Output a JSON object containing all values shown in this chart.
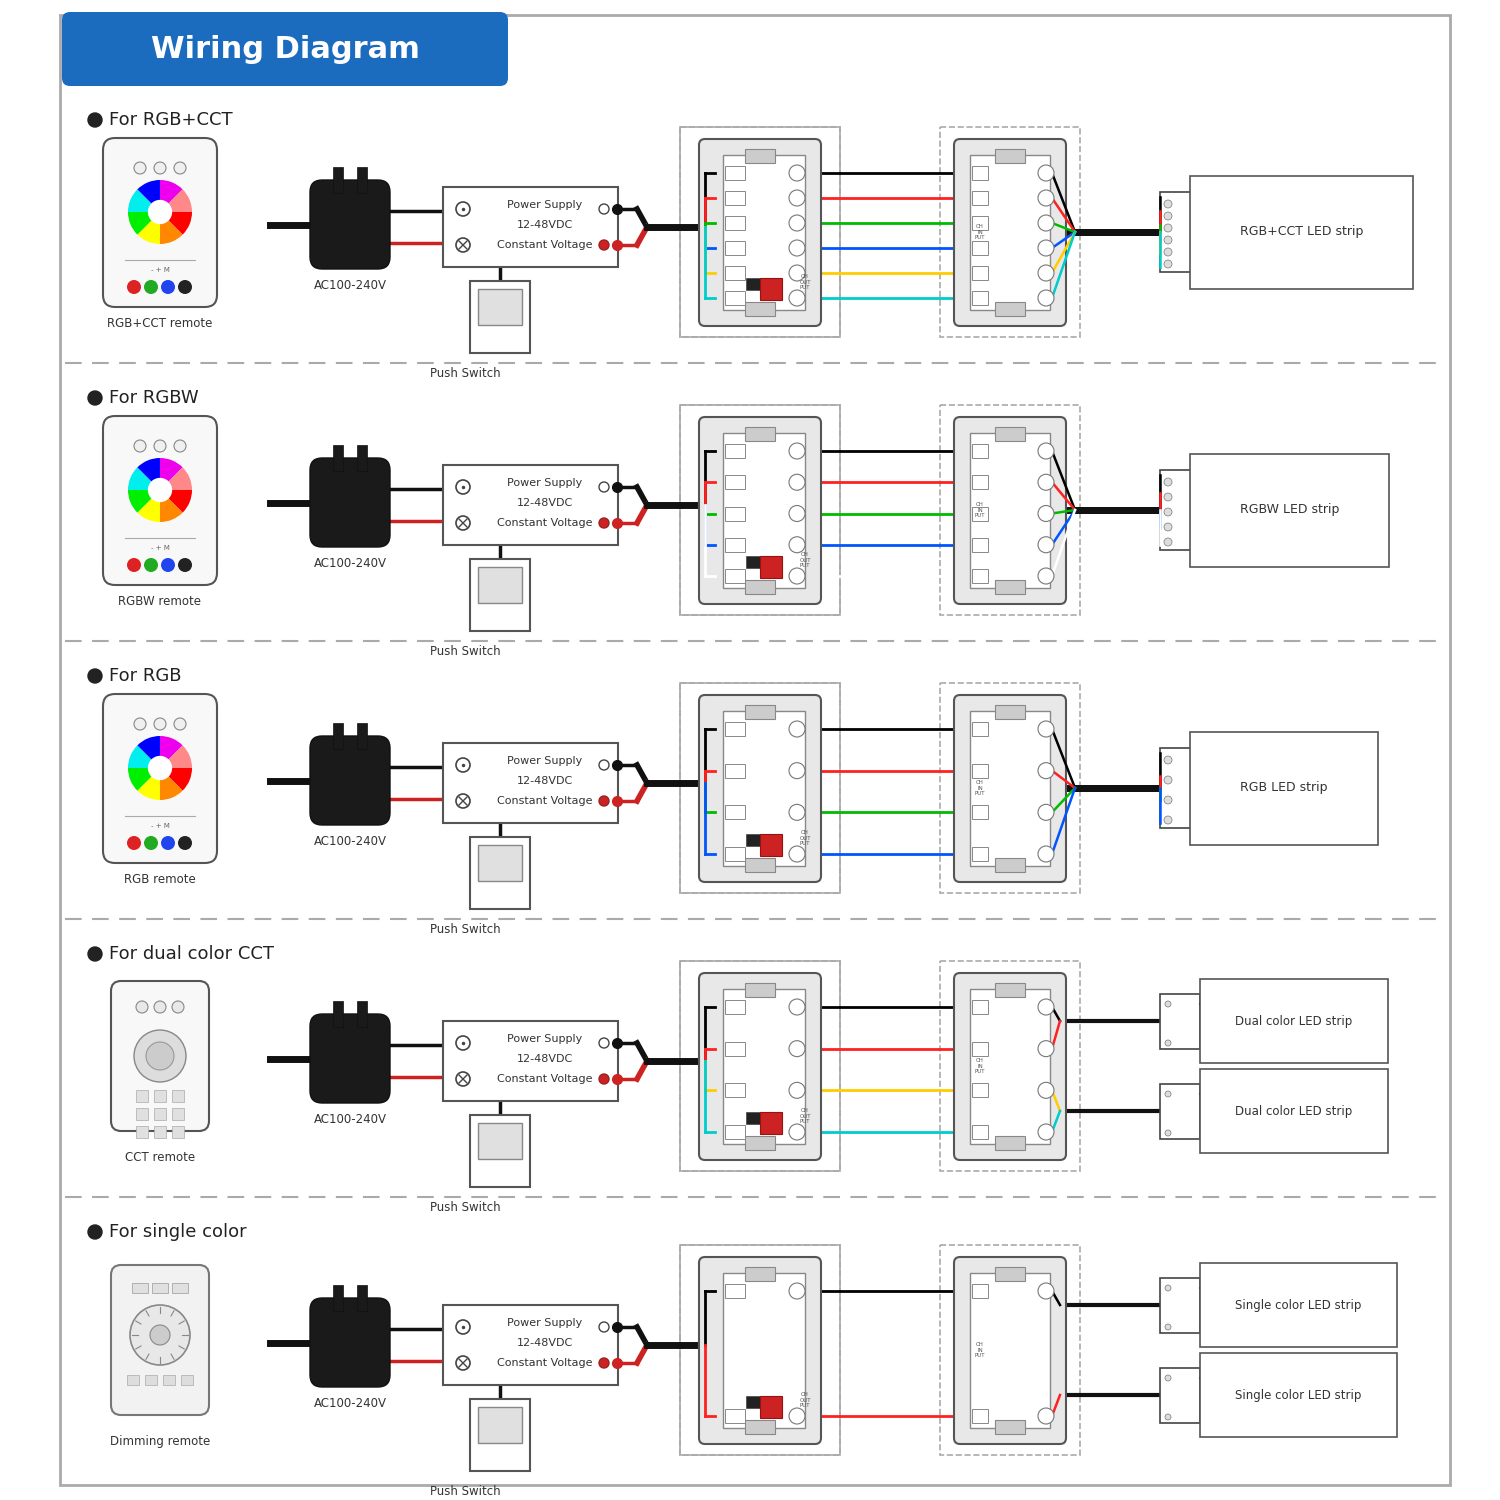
{
  "title": "Wiring Diagram",
  "title_bg": "#1b6bbf",
  "title_color": "#ffffff",
  "bg_color": "#ffffff",
  "sections": [
    {
      "label": "For RGB+CCT",
      "remote_label": "RGB+CCT remote",
      "remote_type": "rgb",
      "strip_label": "RGB+CCT LED strip",
      "strip_type": "single",
      "wire_colors": [
        "#000000",
        "#ff2020",
        "#00bb00",
        "#0055ff",
        "#ffcc00",
        "#00cccc"
      ]
    },
    {
      "label": "For RGBW",
      "remote_label": "RGBW remote",
      "remote_type": "rgb",
      "strip_label": "RGBW LED strip",
      "strip_type": "single",
      "wire_colors": [
        "#000000",
        "#ff2020",
        "#00bb00",
        "#0055ff",
        "#ffffff"
      ]
    },
    {
      "label": "For RGB",
      "remote_label": "RGB remote",
      "remote_type": "rgb",
      "strip_label": "RGB LED strip",
      "strip_type": "single",
      "wire_colors": [
        "#000000",
        "#ff2020",
        "#00bb00",
        "#0055ff"
      ]
    },
    {
      "label": "For dual color CCT",
      "remote_label": "CCT remote",
      "remote_type": "cct",
      "strip_label1": "Dual color LED strip",
      "strip_label2": "Dual color LED strip",
      "strip_type": "dual",
      "wire_colors": [
        "#000000",
        "#ff2020",
        "#ffcc00",
        "#00cccc"
      ]
    },
    {
      "label": "For single color",
      "remote_label": "Dimming remote",
      "remote_type": "dimming",
      "strip_label1": "Single color LED strip",
      "strip_label2": "Single color LED strip",
      "strip_type": "dual",
      "wire_colors": [
        "#000000",
        "#ff2020"
      ]
    }
  ],
  "ps_lines": [
    "Power Supply",
    "12-48VDC",
    "Constant Voltage"
  ],
  "ac_text": "AC100-240V",
  "push_switch_text": "Push Switch"
}
